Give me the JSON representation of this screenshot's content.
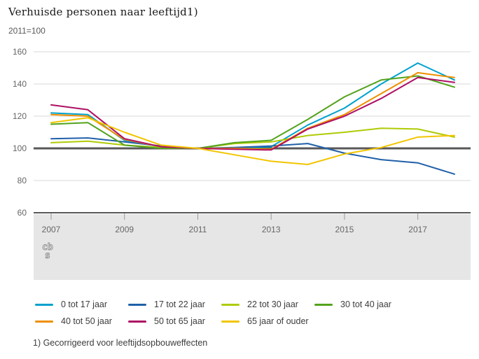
{
  "header": {
    "title": "Verhuisde personen naar leeftijd1)",
    "subtitle": "2011=100"
  },
  "footnote": "1) Gecorrigeerd voor leeftijdsopbouweffecten",
  "logo": {
    "name": "cbs-logo",
    "row1": "cb",
    "row2": "s"
  },
  "colors": {
    "grid": "#d9d9d9",
    "baseline": "#58585a",
    "axis": "#58585a",
    "tick": "#9a9a9a",
    "band": "#e6e6e6",
    "axis_text": "#666666",
    "logo": "#8f8f8f"
  },
  "chart_data": {
    "type": "line",
    "title": "Verhuisde personen naar leeftijd1)",
    "subtitle": "2011=100",
    "xlabel": "",
    "ylabel": "2011=100",
    "x": [
      2007,
      2008,
      2009,
      2010,
      2011,
      2012,
      2013,
      2014,
      2015,
      2016,
      2017,
      2018
    ],
    "x_ticks": [
      2007,
      2009,
      2011,
      2013,
      2015,
      2017
    ],
    "y_ticks": [
      60,
      80,
      100,
      120,
      140,
      160
    ],
    "ylim": [
      60,
      160
    ],
    "baseline": 100,
    "grid": true,
    "legend_position": "bottom",
    "series": [
      {
        "name": "0 tot 17 jaar",
        "color": "#00a1cd",
        "values": [
          122,
          121,
          105,
          101,
          100,
          100,
          101,
          114.5,
          125,
          140,
          153,
          142.5
        ]
      },
      {
        "name": "17 tot 22 jaar",
        "color": "#2060a8",
        "values": [
          106,
          106.5,
          104,
          101.5,
          100,
          100.5,
          101.5,
          103,
          97,
          93,
          91,
          84
        ]
      },
      {
        "name": "22 tot 30 jaar",
        "color": "#afcb05",
        "values": [
          103.5,
          104.5,
          102,
          100.5,
          100,
          103,
          104,
          108,
          110,
          112.5,
          112,
          107
        ]
      },
      {
        "name": "30 tot 40 jaar",
        "color": "#53a31d",
        "values": [
          115,
          116,
          102,
          100,
          100,
          103.5,
          105,
          118,
          132,
          142.5,
          145,
          138
        ]
      },
      {
        "name": "40 tot 50 jaar",
        "color": "#ee8f00",
        "values": [
          121,
          120,
          105.5,
          101,
          100,
          100,
          99.5,
          112.5,
          121,
          134,
          147,
          144
        ]
      },
      {
        "name": "50 tot 65 jaar",
        "color": "#ae1064",
        "values": [
          127,
          124,
          106,
          101,
          100,
          99.5,
          99,
          112,
          120,
          131,
          144,
          141
        ]
      },
      {
        "name": "65 jaar of ouder",
        "color": "#f2c500",
        "values": [
          116,
          119,
          110,
          102,
          100,
          96,
          92,
          90,
          96.5,
          100.5,
          107,
          108
        ]
      }
    ]
  }
}
